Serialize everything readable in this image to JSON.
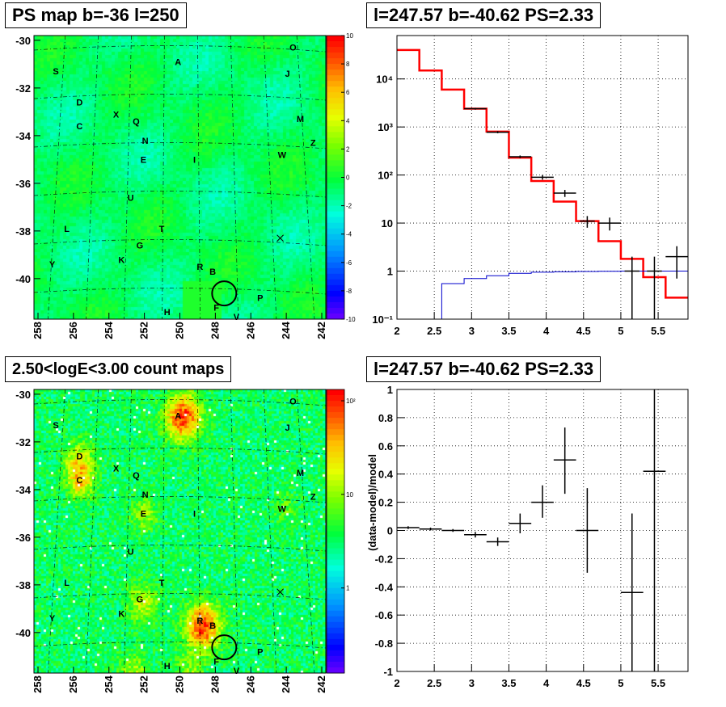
{
  "panels": {
    "top_left": {
      "title": "PS map b=-36 l=250"
    },
    "top_right": {
      "title": "l=247.57 b=-40.62 PS=2.33"
    },
    "bottom_left": {
      "title": "2.50<logE<3.00 count maps"
    },
    "bottom_right": {
      "title": "l=247.57 b=-40.62 PS=2.33"
    }
  },
  "chart_data": [
    {
      "type": "heatmap",
      "title": "PS map b=-36 l=250",
      "x_ticks": [
        "258",
        "256",
        "254",
        "252",
        "250",
        "248",
        "246",
        "244",
        "242"
      ],
      "y_ticks": [
        "-30",
        "-32",
        "-34",
        "-36",
        "-38",
        "-40"
      ],
      "xlim": [
        258,
        242
      ],
      "ylim": [
        -41.7,
        -29.8
      ],
      "colorbar": {
        "min": -10,
        "max": 10,
        "ticks": [
          "10",
          "8",
          "6",
          "4",
          "2",
          "0",
          "-2",
          "-4",
          "-6",
          "-8",
          "-10"
        ]
      },
      "sources": [
        {
          "label": "O",
          "l": 243.8,
          "b": -30.3
        },
        {
          "label": "A",
          "l": 250.1,
          "b": -30.9
        },
        {
          "label": "J",
          "l": 244.1,
          "b": -31.4
        },
        {
          "label": "S",
          "l": 256.8,
          "b": -31.3
        },
        {
          "label": "D",
          "l": 255.5,
          "b": -32.6
        },
        {
          "label": "X",
          "l": 253.5,
          "b": -33.1
        },
        {
          "label": "Q",
          "l": 252.4,
          "b": -33.4
        },
        {
          "label": "M",
          "l": 243.4,
          "b": -33.3
        },
        {
          "label": "C",
          "l": 255.5,
          "b": -33.6
        },
        {
          "label": "N",
          "l": 251.9,
          "b": -34.2
        },
        {
          "label": "Z",
          "l": 242.7,
          "b": -34.3
        },
        {
          "label": "W",
          "l": 244.4,
          "b": -34.8
        },
        {
          "label": "E",
          "l": 252.0,
          "b": -35.0
        },
        {
          "label": "I",
          "l": 249.2,
          "b": -35.0
        },
        {
          "label": "U",
          "l": 252.7,
          "b": -36.6
        },
        {
          "label": "L",
          "l": 256.2,
          "b": -37.9
        },
        {
          "label": "T",
          "l": 251.0,
          "b": -37.9
        },
        {
          "label": "G",
          "l": 252.2,
          "b": -38.6
        },
        {
          "label": "K",
          "l": 253.2,
          "b": -39.2
        },
        {
          "label": "Y",
          "l": 257.0,
          "b": -39.4
        },
        {
          "label": "R",
          "l": 248.9,
          "b": -39.5
        },
        {
          "label": "B",
          "l": 248.2,
          "b": -39.7
        },
        {
          "label": "P",
          "l": 245.6,
          "b": -40.8
        },
        {
          "label": "F",
          "l": 248.0,
          "b": -41.2
        },
        {
          "label": "H",
          "l": 250.7,
          "b": -41.4
        },
        {
          "label": "V",
          "l": 246.9,
          "b": -41.6
        }
      ],
      "marker_x": {
        "l": 244.5,
        "b": -38.3
      },
      "circle": {
        "l": 247.57,
        "b": -40.62
      }
    },
    {
      "type": "line",
      "title": "l=247.57 b=-40.62 PS=2.33",
      "yscale": "log",
      "xlim": [
        2,
        5.9
      ],
      "ylim": [
        0.1,
        80000
      ],
      "x_ticks": [
        "2",
        "2.5",
        "3",
        "3.5",
        "4",
        "4.5",
        "5",
        "5.5"
      ],
      "y_ticks": [
        "10⁻¹",
        "1",
        "10",
        "10²",
        "10³",
        "10⁴"
      ],
      "grid": true,
      "series": [
        {
          "color": "#ff0000",
          "kind": "step",
          "edges": [
            2.0,
            2.3,
            2.6,
            2.9,
            3.2,
            3.5,
            3.8,
            4.1,
            4.4,
            4.7,
            5.0,
            5.3,
            5.6,
            5.9
          ],
          "values": [
            40000,
            15000,
            6000,
            2400,
            800,
            230,
            75,
            28,
            11,
            4.2,
            1.8,
            0.75,
            0.28
          ]
        },
        {
          "color": "#0000cc",
          "kind": "step",
          "edges": [
            2.3,
            2.6,
            2.9,
            3.2,
            3.5,
            3.8,
            4.1,
            4.4,
            4.7,
            5.0,
            5.3,
            5.6,
            5.9
          ],
          "values": [
            0.1,
            0.55,
            0.7,
            0.8,
            0.9,
            0.95,
            0.97,
            0.98,
            0.99,
            1.0,
            1.0,
            1.0
          ]
        },
        {
          "color": "#000000",
          "kind": "errorbar",
          "points": [
            {
              "x": 3.05,
              "y": 2400,
              "xerr": 0.15,
              "lo": 2300,
              "hi": 2500
            },
            {
              "x": 3.35,
              "y": 780,
              "xerr": 0.15,
              "lo": 740,
              "hi": 820
            },
            {
              "x": 3.65,
              "y": 240,
              "xerr": 0.15,
              "lo": 225,
              "hi": 255
            },
            {
              "x": 3.95,
              "y": 90,
              "xerr": 0.15,
              "lo": 80,
              "hi": 100
            },
            {
              "x": 4.25,
              "y": 42,
              "xerr": 0.15,
              "lo": 35,
              "hi": 49
            },
            {
              "x": 4.55,
              "y": 11,
              "xerr": 0.1,
              "lo": 8,
              "hi": 14
            },
            {
              "x": 4.85,
              "y": 10,
              "xerr": 0.15,
              "lo": 7,
              "hi": 13
            },
            {
              "x": 5.15,
              "y": 1.0,
              "xerr": 0.1,
              "lo": 0.1,
              "hi": 2.0
            },
            {
              "x": 5.45,
              "y": 1.0,
              "xerr": 0.1,
              "lo": 0.1,
              "hi": 2.0
            },
            {
              "x": 5.75,
              "y": 2.0,
              "xerr": 0.15,
              "lo": 0.7,
              "hi": 3.3
            }
          ]
        }
      ]
    },
    {
      "type": "heatmap",
      "title": "2.50<logE<3.00 count maps",
      "x_ticks": [
        "258",
        "256",
        "254",
        "252",
        "250",
        "248",
        "246",
        "244",
        "242"
      ],
      "y_ticks": [
        "-30",
        "-32",
        "-34",
        "-36",
        "-38",
        "-40"
      ],
      "xlim": [
        258,
        242
      ],
      "ylim": [
        -41.7,
        -29.8
      ],
      "colorbar": {
        "scale": "log",
        "min": 0.15,
        "max": 150,
        "ticks": [
          "10²",
          "10",
          "1"
        ]
      },
      "hotspots": [
        {
          "l": 249.9,
          "b": -30.9,
          "r": 0.95,
          "amp": 1.0
        },
        {
          "l": 248.8,
          "b": -39.7,
          "r": 0.95,
          "amp": 1.0
        },
        {
          "l": 255.6,
          "b": -32.8,
          "r": 0.8,
          "amp": 0.55
        },
        {
          "l": 255.5,
          "b": -33.7,
          "r": 0.7,
          "amp": 0.5
        },
        {
          "l": 252.0,
          "b": -35.0,
          "r": 0.7,
          "amp": 0.35
        },
        {
          "l": 252.1,
          "b": -38.7,
          "r": 0.8,
          "amp": 0.45
        },
        {
          "l": 252.6,
          "b": -41.6,
          "r": 0.8,
          "amp": 0.35
        },
        {
          "l": 249.5,
          "b": -41.6,
          "r": 0.8,
          "amp": 0.3
        },
        {
          "l": 244.3,
          "b": -34.8,
          "r": 0.7,
          "amp": 0.2
        }
      ]
    },
    {
      "type": "scatter",
      "title": "l=247.57 b=-40.62 PS=2.33",
      "ylabel": "(data-model)/model",
      "xlim": [
        2,
        5.9
      ],
      "ylim": [
        -1,
        1
      ],
      "x_ticks": [
        "2",
        "2.5",
        "3",
        "3.5",
        "4",
        "4.5",
        "5",
        "5.5"
      ],
      "y_ticks": [
        "1",
        "0.8",
        "0.6",
        "0.4",
        "0.2",
        "0",
        "-0.2",
        "-0.4",
        "-0.6",
        "-0.8",
        "-1"
      ],
      "grid": true,
      "points": [
        {
          "x": 2.15,
          "y": 0.02,
          "xerr": 0.15,
          "lo": 0.01,
          "hi": 0.03
        },
        {
          "x": 2.45,
          "y": 0.01,
          "xerr": 0.15,
          "lo": 0.0,
          "hi": 0.02
        },
        {
          "x": 2.75,
          "y": 0.0,
          "xerr": 0.15,
          "lo": -0.01,
          "hi": 0.01
        },
        {
          "x": 3.05,
          "y": -0.03,
          "xerr": 0.15,
          "lo": -0.05,
          "hi": -0.01
        },
        {
          "x": 3.35,
          "y": -0.08,
          "xerr": 0.15,
          "lo": -0.11,
          "hi": -0.05
        },
        {
          "x": 3.65,
          "y": 0.05,
          "xerr": 0.15,
          "lo": -0.02,
          "hi": 0.12
        },
        {
          "x": 3.95,
          "y": 0.2,
          "xerr": 0.15,
          "lo": 0.09,
          "hi": 0.32
        },
        {
          "x": 4.25,
          "y": 0.5,
          "xerr": 0.15,
          "lo": 0.26,
          "hi": 0.73
        },
        {
          "x": 4.55,
          "y": 0.0,
          "xerr": 0.15,
          "lo": -0.3,
          "hi": 0.3
        },
        {
          "x": 5.15,
          "y": -0.44,
          "xerr": 0.15,
          "lo": -1.0,
          "hi": 0.12
        },
        {
          "x": 5.45,
          "y": 0.42,
          "xerr": 0.15,
          "lo": -1.0,
          "hi": 1.0
        }
      ]
    }
  ]
}
